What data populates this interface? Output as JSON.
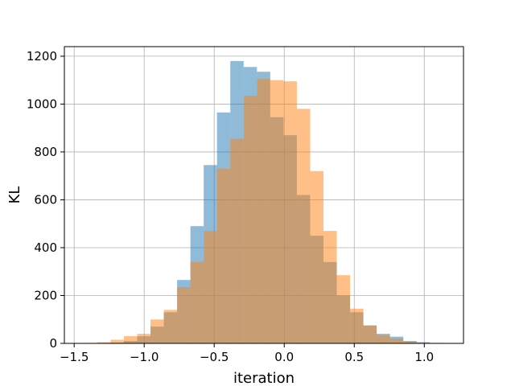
{
  "chart_data": {
    "type": "histogram",
    "title": "",
    "xlabel": "iteration",
    "ylabel": "KL",
    "xlim": [
      -1.57,
      1.28
    ],
    "ylim": [
      0,
      1240
    ],
    "xticks": [
      -1.5,
      -1.0,
      -0.5,
      0.0,
      0.5,
      1.0
    ],
    "xtick_labels": [
      "−1.5",
      "−1.0",
      "−0.5",
      "0.0",
      "0.5",
      "1.0"
    ],
    "yticks": [
      0,
      200,
      400,
      600,
      800,
      1000,
      1200
    ],
    "ytick_labels": [
      "0",
      "200",
      "400",
      "600",
      "800",
      "1000",
      "1200"
    ],
    "grid": true,
    "legend": null,
    "series": [
      {
        "color": "#1f77b4",
        "alpha": 0.5,
        "bin_edges": [
          -1.24,
          -1.145,
          -1.05,
          -0.955,
          -0.86,
          -0.765,
          -0.67,
          -0.575,
          -0.48,
          -0.385,
          -0.29,
          -0.195,
          -0.1,
          -0.005,
          0.09,
          0.185,
          0.28,
          0.375,
          0.47,
          0.565,
          0.66,
          0.755,
          0.85,
          0.945,
          1.04,
          1.135
        ],
        "counts": [
          3,
          10,
          30,
          70,
          130,
          265,
          490,
          745,
          965,
          1180,
          1155,
          1135,
          945,
          870,
          620,
          450,
          340,
          200,
          130,
          75,
          40,
          28,
          10,
          5,
          2
        ]
      },
      {
        "color": "#ff7f0e",
        "alpha": 0.5,
        "bin_edges": [
          -1.43,
          -1.335,
          -1.24,
          -1.145,
          -1.05,
          -0.955,
          -0.86,
          -0.765,
          -0.67,
          -0.575,
          -0.48,
          -0.385,
          -0.29,
          -0.195,
          -0.1,
          -0.005,
          0.09,
          0.185,
          0.28,
          0.375,
          0.47,
          0.565,
          0.66,
          0.755,
          0.85,
          0.945,
          1.04
        ],
        "counts": [
          2,
          5,
          15,
          30,
          40,
          100,
          140,
          235,
          340,
          470,
          730,
          855,
          1035,
          1105,
          1100,
          1095,
          980,
          720,
          470,
          285,
          145,
          75,
          35,
          20,
          8,
          2
        ]
      }
    ]
  }
}
